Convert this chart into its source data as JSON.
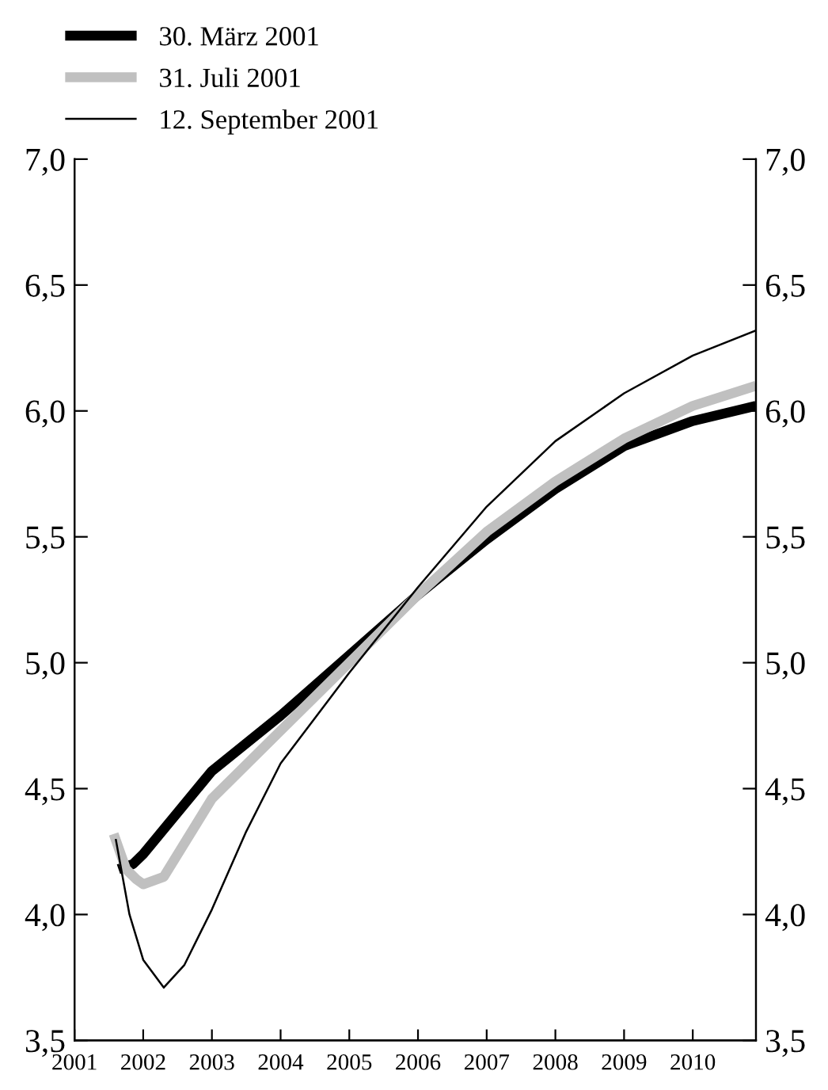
{
  "chart_data": {
    "type": "line",
    "legend": "top left",
    "grid": false,
    "xlim": [
      2001,
      2010.92
    ],
    "xticks": [
      2001,
      2002,
      2003,
      2004,
      2005,
      2006,
      2007,
      2008,
      2009,
      2010
    ],
    "ylim": [
      3.5,
      7.0
    ],
    "yticks": [
      {
        "value": 3.5,
        "label": "3,5"
      },
      {
        "value": 4.0,
        "label": "4,0"
      },
      {
        "value": 4.5,
        "label": "4,5"
      },
      {
        "value": 5.0,
        "label": "5,0"
      },
      {
        "value": 5.5,
        "label": "5,5"
      },
      {
        "value": 6.0,
        "label": "6,0"
      },
      {
        "value": 6.5,
        "label": "6,5"
      },
      {
        "value": 7.0,
        "label": "7,0"
      }
    ],
    "y2lim": [
      3.5,
      7.0
    ],
    "y2ticks": [
      {
        "value": 3.5,
        "label": "3,5"
      },
      {
        "value": 4.0,
        "label": "4,0"
      },
      {
        "value": 4.5,
        "label": "4,5"
      },
      {
        "value": 5.0,
        "label": "5,0"
      },
      {
        "value": 5.5,
        "label": "5,5"
      },
      {
        "value": 6.0,
        "label": "6,0"
      },
      {
        "value": 6.5,
        "label": "6,5"
      },
      {
        "value": 7.0,
        "label": "7,0"
      }
    ],
    "series": [
      {
        "name": "30. März 2001",
        "color": "#000000",
        "x": [
          2001.64,
          2001.85,
          2002,
          2003,
          2004,
          2005,
          2006,
          2007,
          2008,
          2009,
          2010,
          2010.92
        ],
        "values": [
          4.18,
          4.2,
          4.24,
          4.57,
          4.79,
          5.03,
          5.27,
          5.49,
          5.69,
          5.86,
          5.96,
          6.02
        ]
      },
      {
        "name": "31. Juli 2001",
        "color": "#c0c0c0",
        "x": [
          2001.57,
          2001.75,
          2001.9,
          2002,
          2002.3,
          2003,
          2004,
          2005,
          2006,
          2007,
          2008,
          2009,
          2010,
          2010.92
        ],
        "values": [
          4.32,
          4.18,
          4.14,
          4.12,
          4.15,
          4.46,
          4.73,
          5.0,
          5.27,
          5.52,
          5.72,
          5.89,
          6.02,
          6.1
        ]
      },
      {
        "name": "12. September 2001",
        "color": "#000000",
        "x": [
          2001.6,
          2001.8,
          2002,
          2002.3,
          2002.6,
          2003,
          2003.5,
          2004,
          2005,
          2006,
          2007,
          2008,
          2009,
          2010,
          2010.92
        ],
        "values": [
          4.3,
          4.0,
          3.82,
          3.71,
          3.8,
          4.02,
          4.33,
          4.6,
          4.96,
          5.3,
          5.62,
          5.88,
          6.07,
          6.22,
          6.32
        ]
      }
    ]
  }
}
